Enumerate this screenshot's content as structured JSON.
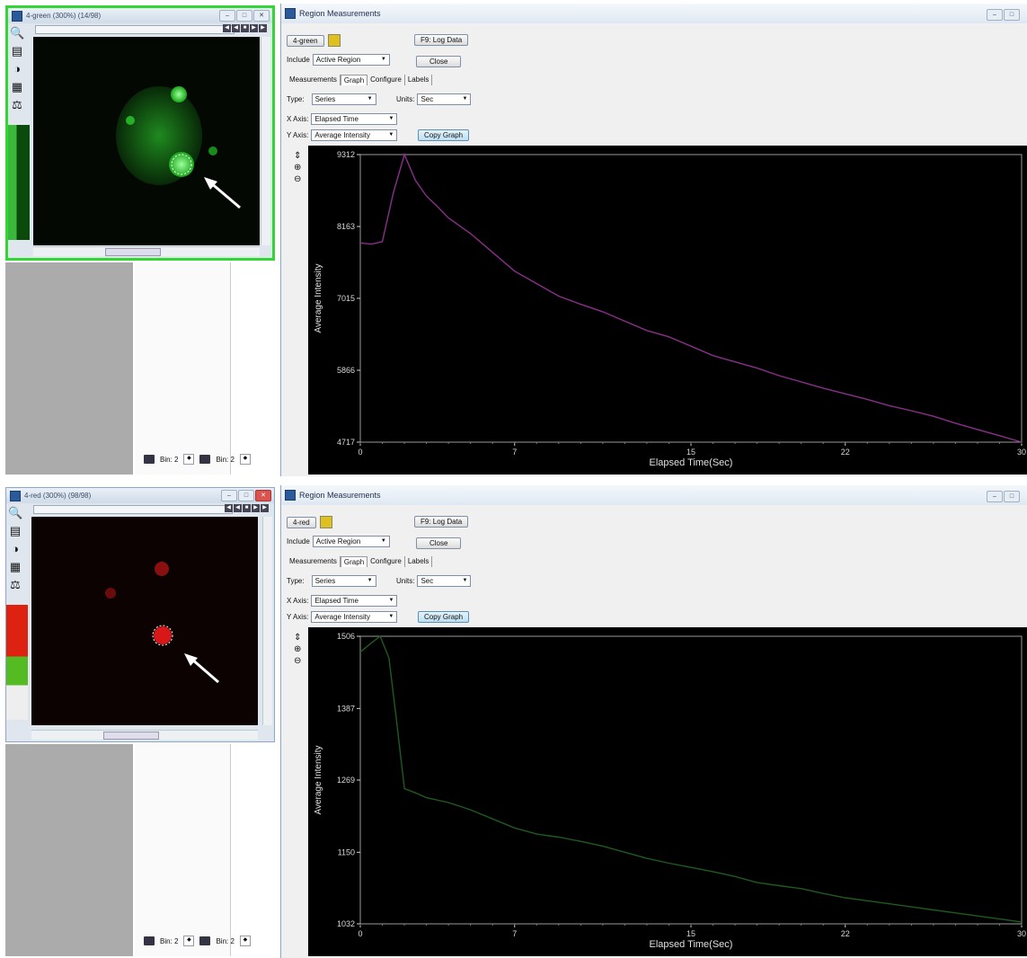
{
  "top": {
    "image_window": {
      "title": "4-green (300%) (14/98)"
    },
    "bin_left": "Bin: 2",
    "bin_right": "Bin: 2",
    "region": {
      "title": "Region Measurements",
      "image_name": "4-green",
      "log_button": "F9: Log Data",
      "include_label": "Include",
      "include_value": "Active Region",
      "close_button": "Close",
      "tabs": [
        "Measurements",
        "Graph",
        "Configure",
        "Labels"
      ],
      "type_label": "Type:",
      "type_value": "Series",
      "units_label": "Units:",
      "units_value": "Sec",
      "xaxis_label": "X Axis:",
      "xaxis_value": "Elapsed Time",
      "yaxis_label": "Y Axis:",
      "yaxis_value": "Average Intensity",
      "copy_graph": "Copy Graph"
    }
  },
  "bottom": {
    "image_window": {
      "title": "4-red (300%) (98/98)"
    },
    "bin_left": "Bin: 2",
    "bin_right": "Bin: 2",
    "region": {
      "title": "Region Measurements",
      "image_name": "4-red",
      "log_button": "F9: Log Data",
      "include_label": "Include",
      "include_value": "Active Region",
      "close_button": "Close",
      "tabs": [
        "Measurements",
        "Graph",
        "Configure",
        "Labels"
      ],
      "type_label": "Type:",
      "type_value": "Series",
      "units_label": "Units:",
      "units_value": "Sec",
      "xaxis_label": "X Axis:",
      "xaxis_value": "Elapsed Time",
      "yaxis_label": "Y Axis:",
      "yaxis_value": "Average Intensity",
      "copy_graph": "Copy Graph"
    }
  },
  "colors": {
    "green_line": "#8a2f8a",
    "red_line": "#1f5a1f",
    "active_border": "#34d634"
  },
  "chart_data": [
    {
      "type": "line",
      "xlabel": "Elapsed Time(Sec)",
      "ylabel": "Average Intensity",
      "xticks": [
        0,
        7,
        15,
        22,
        30
      ],
      "yticks": [
        4717,
        5866,
        7015,
        8163,
        9312
      ],
      "xlim": [
        0,
        30
      ],
      "ylim": [
        4717,
        9312
      ],
      "series": [
        {
          "x": [
            0,
            0.5,
            1,
            1.5,
            2,
            2.5,
            3,
            3.5,
            4,
            5,
            6,
            7,
            8,
            9,
            10,
            11,
            12,
            13,
            14,
            15,
            16,
            17,
            18,
            19,
            20,
            21,
            22,
            23,
            24,
            25,
            26,
            27,
            28,
            29,
            30
          ],
          "y": [
            7900,
            7880,
            7920,
            8700,
            9312,
            8900,
            8650,
            8480,
            8300,
            8050,
            7750,
            7450,
            7250,
            7050,
            6920,
            6800,
            6650,
            6500,
            6400,
            6250,
            6100,
            6000,
            5900,
            5780,
            5680,
            5580,
            5490,
            5400,
            5300,
            5220,
            5130,
            5020,
            4920,
            4820,
            4717
          ]
        }
      ]
    },
    {
      "type": "line",
      "xlabel": "Elapsed Time(Sec)",
      "ylabel": "Average Intensity",
      "xticks": [
        0,
        7,
        15,
        22,
        30
      ],
      "yticks": [
        1032,
        1150,
        1269,
        1387,
        1506
      ],
      "xlim": [
        0,
        30
      ],
      "ylim": [
        1032,
        1506
      ],
      "series": [
        {
          "x": [
            0,
            0.5,
            0.9,
            1.3,
            1.6,
            2,
            2.5,
            3,
            4,
            5,
            6,
            7,
            8,
            9,
            10,
            11,
            12,
            13,
            14,
            15,
            16,
            17,
            18,
            19,
            20,
            21,
            22,
            23,
            24,
            25,
            26,
            27,
            28,
            29,
            30
          ],
          "y": [
            1480,
            1495,
            1506,
            1470,
            1380,
            1255,
            1248,
            1240,
            1232,
            1220,
            1205,
            1190,
            1180,
            1175,
            1168,
            1160,
            1150,
            1140,
            1132,
            1125,
            1118,
            1110,
            1100,
            1095,
            1090,
            1082,
            1075,
            1070,
            1065,
            1060,
            1055,
            1050,
            1045,
            1040,
            1035
          ]
        }
      ]
    }
  ]
}
